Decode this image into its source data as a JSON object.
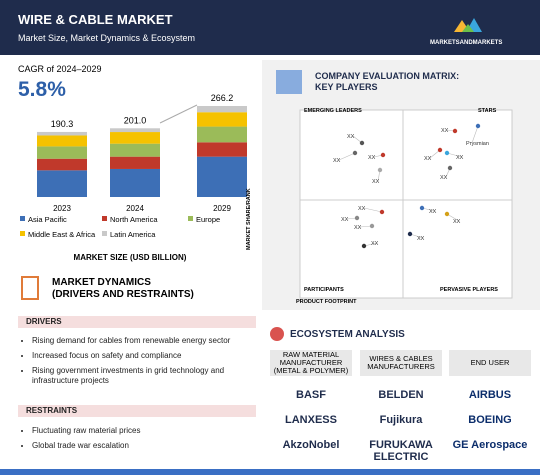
{
  "header": {
    "title": "WIRE & CABLE MARKET",
    "subtitle": "Market Size, Market Dynamics & Ecosystem",
    "brand": "MARKETSANDMARKETS"
  },
  "cagr": {
    "label": "CAGR of 2024–2029",
    "value": "5.8%"
  },
  "chart_data": {
    "type": "stacked-bar",
    "title": "MARKET SIZE (USD BILLION)",
    "categories": [
      "2023",
      "2024",
      "2029"
    ],
    "series": [
      {
        "name": "Asia Pacific",
        "color": "#3d6fb6",
        "values": [
          78,
          82,
          118
        ]
      },
      {
        "name": "North America",
        "color": "#c0392b",
        "values": [
          34,
          36,
          42
        ]
      },
      {
        "name": "Europe",
        "color": "#9bbb59",
        "values": [
          36,
          38,
          46
        ]
      },
      {
        "name": "Middle East & Africa",
        "color": "#f5c200",
        "values": [
          32,
          34,
          42
        ]
      },
      {
        "name": "Latin America",
        "color": "#c9c9c9",
        "values": [
          10.3,
          11,
          18.2
        ]
      }
    ],
    "totals": [
      190.3,
      201,
      266.2
    ],
    "total_labels": [
      "190.3",
      "201.0",
      "266.2"
    ]
  },
  "market_dynamics": {
    "title_1": "MARKET DYNAMICS",
    "title_2": "(DRIVERS AND RESTRAINTS)",
    "drivers_title": "DRIVERS",
    "drivers": [
      "Rising demand for cables from renewable energy sector",
      "Increased focus on safety and compliance",
      "Rising government investments in grid technology and infrastructure projects"
    ],
    "restraints_title": "RESTRAINTS",
    "restraints": [
      "Fluctuating raw material prices",
      "Global trade war escalation"
    ]
  },
  "matrix": {
    "title_1": "COMPANY EVALUATION MATRIX:",
    "title_2": "KEY PLAYERS",
    "emerging": "EMERGING LEADERS",
    "stars": "STARS",
    "participants": "PARTICIPANTS",
    "pervasive": "PERVASIVE PLAYERS",
    "y_label": "MARKET SHARE/RANK",
    "x_label": "PRODUCT FOOTPRINT",
    "points": [
      {
        "label": "XX"
      },
      {
        "label": "XX"
      },
      {
        "label": "XX"
      },
      {
        "label": "XX"
      },
      {
        "label": "Prysmian"
      },
      {
        "label": "XX"
      },
      {
        "label": "XX"
      },
      {
        "label": "XX"
      },
      {
        "label": "XX"
      },
      {
        "label": "XX"
      },
      {
        "label": "XX"
      },
      {
        "label": "XX"
      },
      {
        "label": "XX"
      },
      {
        "label": "XX"
      },
      {
        "label": "XX"
      },
      {
        "label": "XX"
      }
    ]
  },
  "ecosystem": {
    "title": "ECOSYSTEM ANALYSIS",
    "columns": [
      {
        "header": "RAW MATERIAL MANUFACTURER (METAL & POLYMER)",
        "companies": [
          "BASF",
          "LANXESS",
          "AkzoNobel"
        ]
      },
      {
        "header": "WIRES & CABLES MANUFACTURERS",
        "companies": [
          "BELDEN",
          "Fujikura",
          "FURUKAWA ELECTRIC"
        ]
      },
      {
        "header": "END USER",
        "companies": [
          "AIRBUS",
          "BOEING",
          "GE Aerospace"
        ]
      }
    ]
  }
}
